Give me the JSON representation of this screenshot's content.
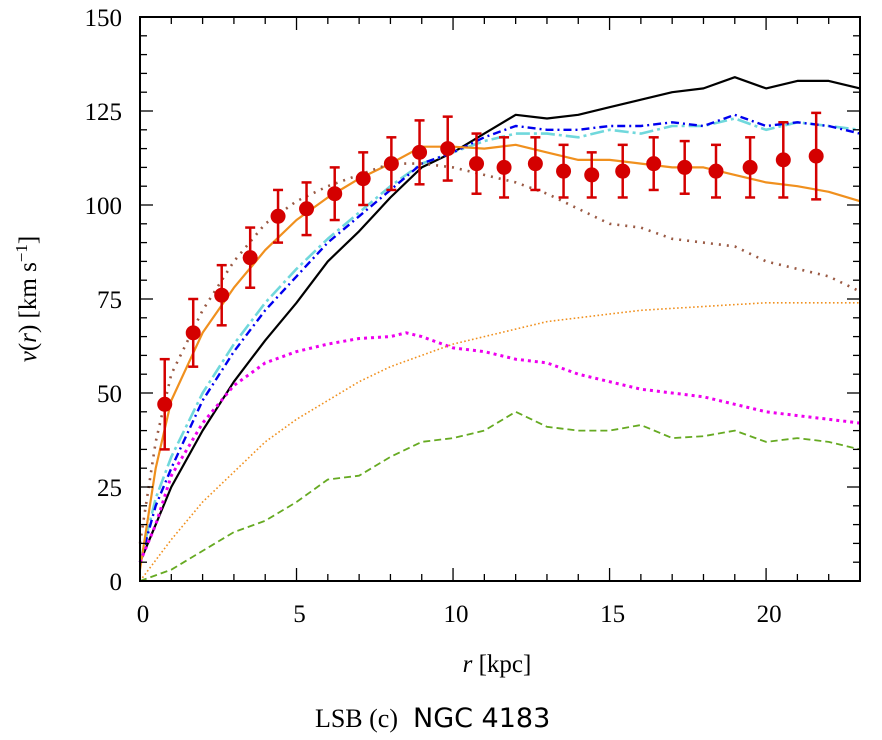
{
  "chart_data": {
    "type": "line",
    "title": "",
    "caption_prefix": "LSB (c)",
    "caption_name": "NGC 4183",
    "xlabel": "r [kpc]",
    "ylabel": "v(r) [km s−1]",
    "xlim": [
      0,
      23
    ],
    "ylim": [
      0,
      150
    ],
    "xticks": [
      0,
      5,
      10,
      15,
      20
    ],
    "yticks": [
      0,
      25,
      50,
      75,
      100,
      125,
      150
    ],
    "grid": false,
    "observed": {
      "color": "#d40000",
      "r": [
        0.79,
        1.7,
        2.61,
        3.52,
        4.41,
        5.32,
        6.22,
        7.13,
        8.03,
        8.93,
        9.83,
        10.75,
        11.63,
        12.63,
        13.53,
        14.43,
        15.42,
        16.41,
        17.4,
        18.4,
        19.49,
        20.55,
        21.6
      ],
      "v": [
        47,
        66,
        76,
        86,
        97,
        99,
        103,
        107,
        111,
        114,
        115,
        111,
        110,
        111,
        109,
        108,
        109,
        111,
        110,
        109,
        110,
        112,
        113
      ],
      "err": [
        12,
        9,
        8,
        8,
        7,
        7,
        7,
        7,
        7,
        8.5,
        8.5,
        8,
        8,
        7,
        7,
        6,
        7,
        7,
        7,
        7,
        8,
        10,
        11.5
      ]
    },
    "series": [
      {
        "color": "#000000",
        "style": "solid",
        "width": 2.2,
        "r": [
          0,
          0.5,
          1,
          2,
          3,
          4,
          5,
          6,
          7,
          8,
          9,
          10,
          11,
          12,
          13,
          14,
          15,
          16,
          17,
          18,
          19,
          20,
          21,
          22,
          23
        ],
        "v": [
          5,
          15,
          25,
          40,
          53,
          64,
          74,
          85,
          93,
          102,
          110,
          114,
          119,
          124,
          123,
          124,
          126,
          128,
          130,
          131,
          134,
          131,
          133,
          133,
          131
        ]
      },
      {
        "color": "#70d8dc",
        "style": "longdashdot",
        "width": 2.6,
        "r": [
          0,
          0.5,
          1,
          2,
          3,
          4,
          5,
          6,
          7,
          8,
          9,
          10,
          11,
          12,
          13,
          14,
          15,
          16,
          17,
          18,
          19,
          20,
          21,
          22,
          23
        ],
        "v": [
          5,
          22,
          33,
          50,
          63,
          74,
          83,
          91,
          98,
          105,
          111,
          114,
          117,
          119,
          119,
          118,
          120,
          119,
          121,
          121,
          123,
          120,
          122,
          121,
          120
        ]
      },
      {
        "color": "#0000ee",
        "style": "dashdot",
        "width": 2.4,
        "r": [
          0,
          0.5,
          1,
          2,
          3,
          4,
          5,
          6,
          7,
          8,
          9,
          10,
          11,
          12,
          13,
          14,
          15,
          16,
          17,
          18,
          19,
          20,
          21,
          22,
          23
        ],
        "v": [
          5,
          20,
          30,
          48,
          61,
          72,
          81,
          90,
          97,
          104,
          111,
          114,
          118,
          121,
          120,
          120,
          121,
          121,
          122,
          121,
          124,
          121,
          122,
          121,
          119
        ]
      },
      {
        "color": "#f0901e",
        "style": "solid",
        "width": 2.2,
        "r": [
          0,
          0.5,
          1,
          2,
          3,
          4,
          5,
          6,
          7,
          8,
          9,
          10,
          11,
          12,
          13,
          14,
          15,
          16,
          17,
          18,
          19,
          20,
          21,
          22,
          23
        ],
        "v": [
          3,
          30,
          48,
          66,
          78,
          88,
          96,
          102,
          107,
          111,
          115.5,
          115.5,
          115,
          116,
          114,
          112,
          112,
          111,
          110,
          110,
          108,
          106,
          105,
          103.5,
          101
        ]
      },
      {
        "color": "#9a5a44",
        "style": "dotted",
        "width": 2.6,
        "r": [
          0,
          0.5,
          1,
          2,
          3,
          4,
          5,
          6,
          7,
          8,
          9,
          10,
          11,
          12,
          13,
          14,
          15,
          16,
          17,
          18,
          19,
          20,
          21,
          22,
          23
        ],
        "v": [
          10,
          37,
          55,
          72,
          85,
          95,
          101,
          105,
          108,
          111,
          111,
          110,
          108,
          106,
          103,
          99,
          95,
          94,
          91,
          90,
          89,
          85,
          83,
          81,
          77
        ]
      },
      {
        "color": "#ee00ee",
        "style": "densedot",
        "width": 3,
        "r": [
          0,
          0.5,
          1,
          2,
          3,
          4,
          5,
          6,
          7,
          8,
          8.5,
          9,
          10,
          11,
          12,
          13,
          14,
          15,
          16,
          17,
          18,
          19,
          20,
          21,
          22,
          23
        ],
        "v": [
          5,
          15,
          28,
          42,
          52,
          58,
          61,
          63,
          64.5,
          65,
          66,
          65,
          62,
          61,
          59,
          58,
          55,
          53,
          51,
          50,
          49,
          47,
          45,
          44,
          43,
          42
        ]
      },
      {
        "color": "#f0901e",
        "style": "finedot",
        "width": 1.6,
        "r": [
          0,
          1,
          2,
          3,
          4,
          5,
          6,
          7,
          8,
          9,
          10,
          11,
          12,
          13,
          14,
          15,
          16,
          17,
          18,
          19,
          20,
          21,
          22,
          23
        ],
        "v": [
          0,
          11,
          21,
          29,
          37,
          43,
          48,
          53,
          57,
          60,
          63,
          65,
          67,
          69,
          70,
          71,
          72,
          72.5,
          73,
          73.5,
          74,
          74,
          74,
          74
        ]
      },
      {
        "color": "#66aa22",
        "style": "dashed",
        "width": 1.8,
        "r": [
          0,
          1,
          2,
          3,
          4,
          5,
          6,
          7,
          8,
          9,
          10,
          11,
          12,
          13,
          14,
          15,
          16,
          17,
          18,
          19,
          20,
          21,
          22,
          23
        ],
        "v": [
          0,
          3,
          8,
          13,
          16,
          21,
          27,
          28,
          33,
          37,
          38,
          40,
          45,
          41,
          40,
          40,
          41.5,
          38,
          38.5,
          40,
          37,
          38,
          37,
          35
        ]
      }
    ]
  }
}
